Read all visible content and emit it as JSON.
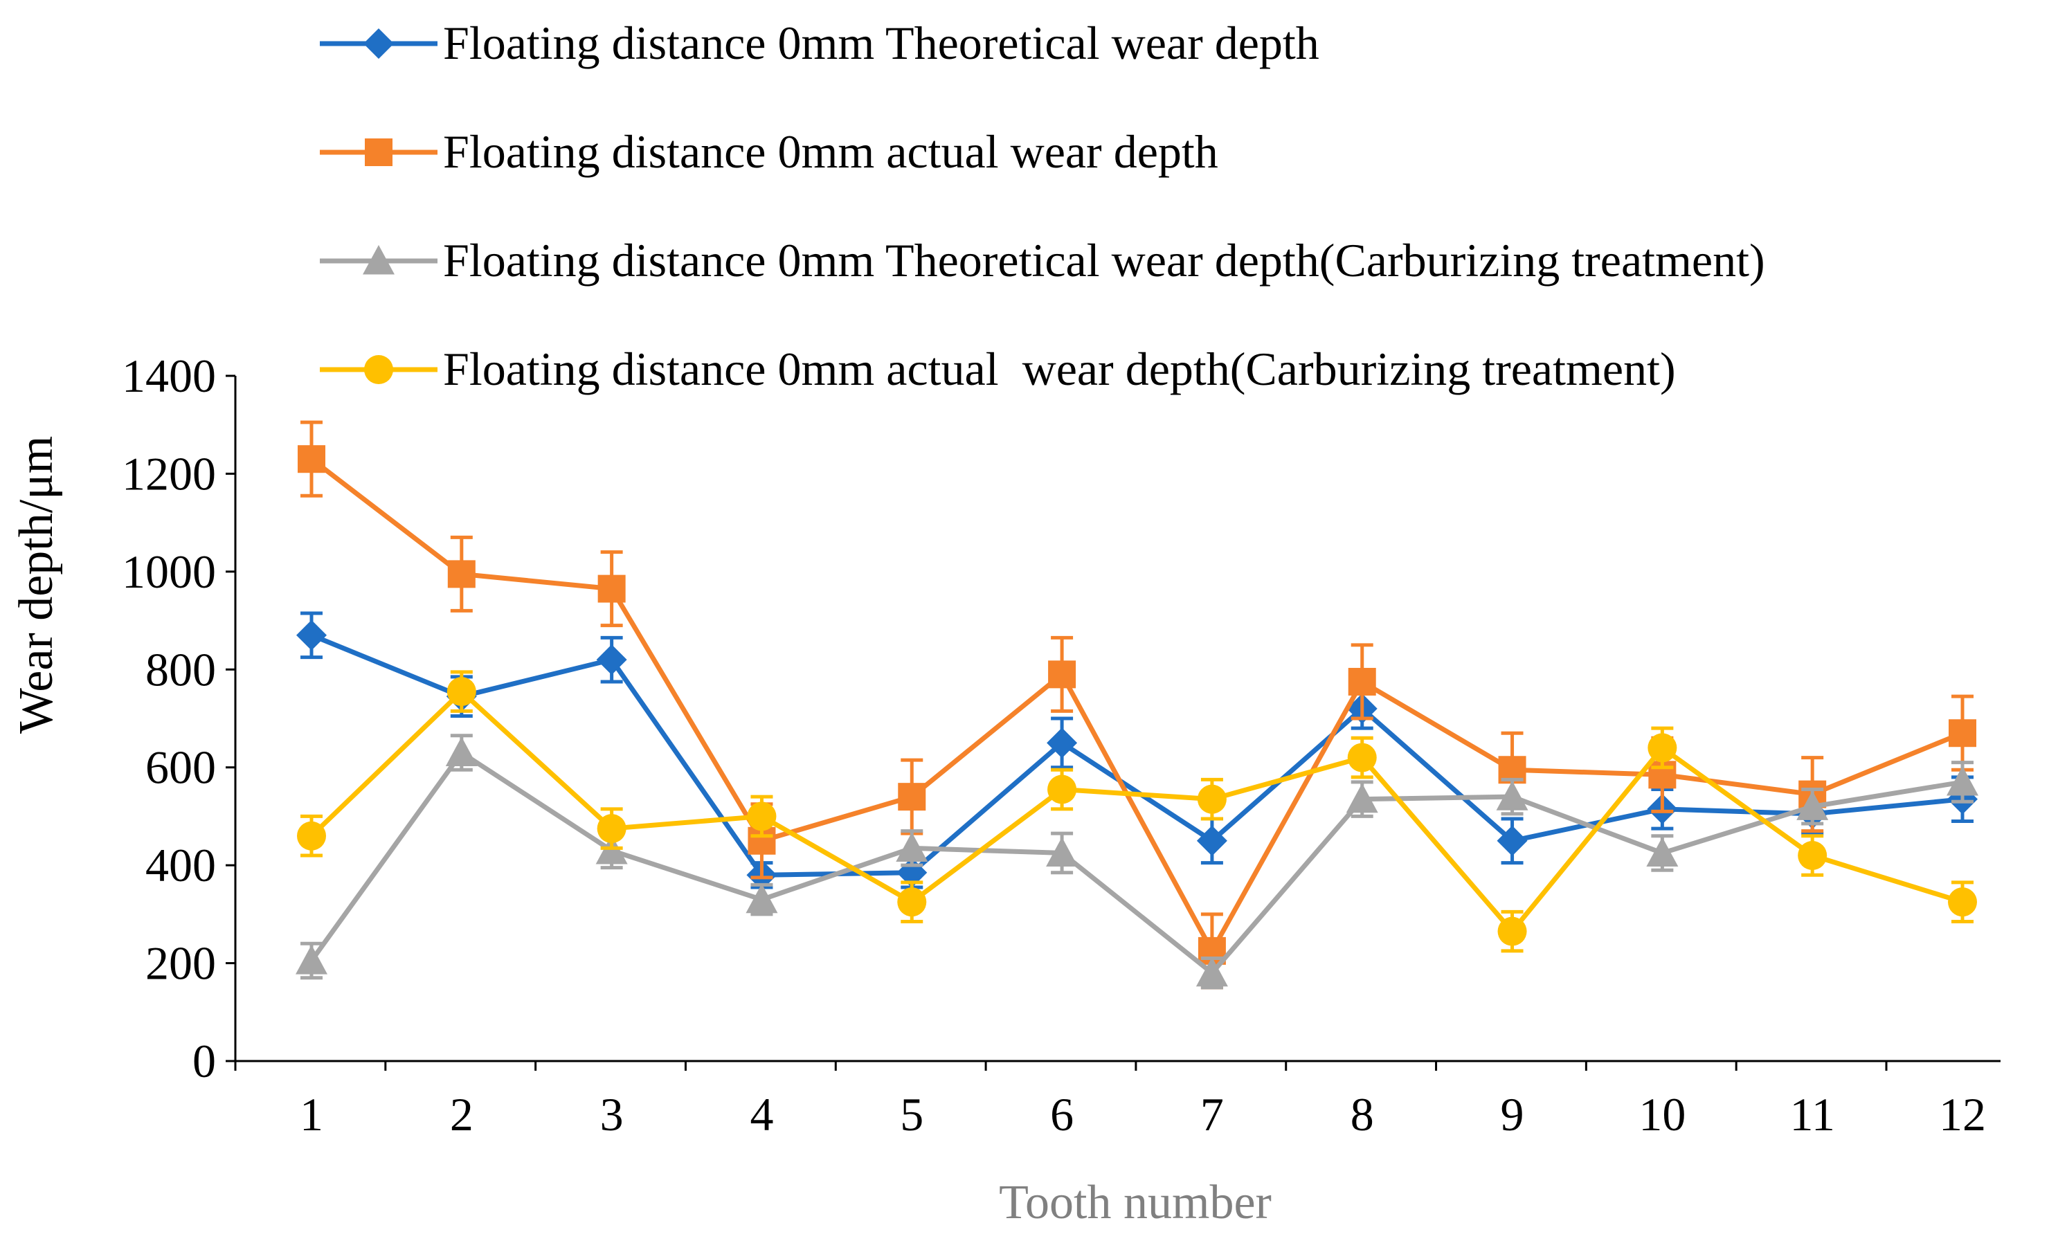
{
  "chart_data": {
    "type": "line",
    "title": "",
    "xlabel": "Tooth number",
    "ylabel": "Wear depth/μm",
    "x": [
      1,
      2,
      3,
      4,
      5,
      6,
      7,
      8,
      9,
      10,
      11,
      12
    ],
    "x_tick_labels": [
      "1",
      "2",
      "3",
      "4",
      "5",
      "6",
      "7",
      "8",
      "9",
      "10",
      "11",
      "12"
    ],
    "ylim": [
      0,
      1400
    ],
    "y_ticks": [
      0,
      200,
      400,
      600,
      800,
      1000,
      1200,
      1400
    ],
    "y_tick_labels": [
      "0",
      "200",
      "400",
      "600",
      "800",
      "1000",
      "1200",
      "1400"
    ],
    "grid": false,
    "legend_position": "top",
    "series": [
      {
        "name": "Floating distance 0mm Theoretical wear depth",
        "color": "#1F6FC5",
        "marker": "diamond",
        "values": [
          870,
          745,
          820,
          380,
          385,
          650,
          450,
          720,
          450,
          515,
          505,
          535
        ],
        "error": [
          45,
          40,
          45,
          25,
          30,
          50,
          45,
          40,
          45,
          40,
          40,
          45
        ]
      },
      {
        "name": "Floating distance 0mm actual wear depth",
        "color": "#F5822A",
        "marker": "square",
        "values": [
          1230,
          995,
          965,
          450,
          540,
          790,
          225,
          775,
          595,
          585,
          545,
          670
        ],
        "error": [
          75,
          75,
          75,
          75,
          75,
          75,
          75,
          75,
          75,
          75,
          75,
          75
        ]
      },
      {
        "name": "Floating distance 0mm Theoretical wear depth(Carburizing treatment)",
        "color": "#A5A5A5",
        "marker": "triangle",
        "values": [
          205,
          630,
          430,
          330,
          435,
          425,
          180,
          535,
          540,
          425,
          520,
          570
        ],
        "error": [
          35,
          35,
          35,
          30,
          35,
          40,
          30,
          35,
          35,
          35,
          35,
          40
        ]
      },
      {
        "name": "Floating distance 0mm actual  wear depth(Carburizing treatment)",
        "color": "#FFC000",
        "marker": "circle",
        "values": [
          460,
          755,
          475,
          500,
          325,
          555,
          535,
          620,
          265,
          640,
          420,
          325
        ],
        "error": [
          40,
          40,
          40,
          40,
          40,
          40,
          40,
          40,
          40,
          40,
          40,
          40
        ]
      }
    ]
  }
}
